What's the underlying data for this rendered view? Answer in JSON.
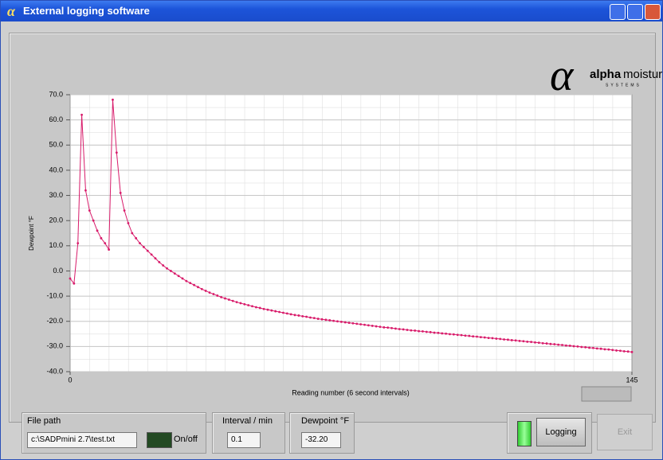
{
  "window": {
    "title": "External logging software"
  },
  "logo": {
    "bold": "alpha",
    "light": "moisture",
    "sub": "SYSTEMS"
  },
  "chart_data": {
    "type": "line",
    "ylabel": "Dewpoint °F",
    "xlabel": "Reading number (6 second intervals)",
    "color": "#d81b6a",
    "x": [
      0,
      1,
      2,
      3,
      4,
      5,
      6,
      7,
      8,
      9,
      10,
      11,
      12,
      13,
      14,
      15,
      16,
      17,
      18,
      19,
      20,
      21,
      22,
      23,
      24,
      25,
      26,
      27,
      28,
      29,
      30,
      31,
      32,
      33,
      34,
      35,
      36,
      37,
      38,
      39,
      40,
      41,
      42,
      43,
      44,
      45,
      46,
      47,
      48,
      49,
      50,
      51,
      52,
      53,
      54,
      55,
      56,
      57,
      58,
      59,
      60,
      61,
      62,
      63,
      64,
      65,
      66,
      67,
      68,
      69,
      70,
      71,
      72,
      73,
      74,
      75,
      76,
      77,
      78,
      79,
      80,
      81,
      82,
      83,
      84,
      85,
      86,
      87,
      88,
      89,
      90,
      91,
      92,
      93,
      94,
      95,
      96,
      97,
      98,
      99,
      100,
      101,
      102,
      103,
      104,
      105,
      106,
      107,
      108,
      109,
      110,
      111,
      112,
      113,
      114,
      115,
      116,
      117,
      118,
      119,
      120,
      121,
      122,
      123,
      124,
      125,
      126,
      127,
      128,
      129,
      130,
      131,
      132,
      133,
      134,
      135,
      136,
      137,
      138,
      139,
      140,
      141,
      142,
      143,
      144,
      145
    ],
    "values": [
      -3,
      -5,
      11,
      62,
      32,
      24,
      20,
      16,
      13,
      11,
      8.5,
      68,
      47,
      31,
      24,
      19,
      15,
      13,
      11,
      9.5,
      8,
      6.5,
      5,
      3.5,
      2.2,
      1,
      0,
      -1,
      -2,
      -3,
      -4,
      -4.8,
      -5.6,
      -6.4,
      -7.2,
      -7.9,
      -8.6,
      -9.2,
      -9.8,
      -10.4,
      -10.9,
      -11.4,
      -11.9,
      -12.4,
      -12.8,
      -13.2,
      -13.6,
      -14,
      -14.4,
      -14.7,
      -15.1,
      -15.4,
      -15.7,
      -16,
      -16.3,
      -16.6,
      -16.9,
      -17.2,
      -17.5,
      -17.7,
      -18,
      -18.2,
      -18.5,
      -18.7,
      -19,
      -19.2,
      -19.4,
      -19.6,
      -19.8,
      -20,
      -20.2,
      -20.4,
      -20.6,
      -20.8,
      -21,
      -21.2,
      -21.4,
      -21.6,
      -21.8,
      -22,
      -22.2,
      -22.4,
      -22.5,
      -22.7,
      -22.9,
      -23.1,
      -23.2,
      -23.4,
      -23.6,
      -23.7,
      -23.9,
      -24,
      -24.2,
      -24.3,
      -24.5,
      -24.6,
      -24.8,
      -24.9,
      -25.1,
      -25.2,
      -25.4,
      -25.5,
      -25.7,
      -25.8,
      -26,
      -26.1,
      -26.3,
      -26.4,
      -26.6,
      -26.7,
      -26.9,
      -27,
      -27.2,
      -27.3,
      -27.5,
      -27.6,
      -27.8,
      -27.9,
      -28.1,
      -28.2,
      -28.4,
      -28.5,
      -28.7,
      -28.8,
      -29,
      -29.1,
      -29.3,
      -29.4,
      -29.6,
      -29.7,
      -29.9,
      -30,
      -30.2,
      -30.3,
      -30.5,
      -30.6,
      -30.8,
      -30.9,
      -31.1,
      -31.2,
      -31.4,
      -31.6,
      -31.7,
      -31.9,
      -32,
      -32.2
    ],
    "xlim": [
      0,
      145
    ],
    "xticks": [
      0,
      145
    ],
    "ylim": [
      -40,
      70
    ],
    "yticks": [
      {
        "value": -40,
        "label": "-40.0"
      },
      {
        "value": -30,
        "label": "-30.0"
      },
      {
        "value": -20,
        "label": "-20.0"
      },
      {
        "value": -10,
        "label": "-10.0"
      },
      {
        "value": 0,
        "label": "0.0"
      },
      {
        "value": 10,
        "label": "10.0"
      },
      {
        "value": 20,
        "label": "20.0"
      },
      {
        "value": 30,
        "label": "30.0"
      },
      {
        "value": 40,
        "label": "40.0"
      },
      {
        "value": 50,
        "label": "50.0"
      },
      {
        "value": 60,
        "label": "60.0"
      },
      {
        "value": 70,
        "label": "70.0"
      }
    ],
    "grid": true
  },
  "controls": {
    "file_path_label": "File path",
    "file_path": "c:\\SADPmini 2.7\\test.txt",
    "onoff": "On/off",
    "interval_label": "Interval / min",
    "interval": "0.1",
    "dewpoint_label": "Dewpoint °F",
    "dewpoint": "-32.20",
    "logging": "Logging",
    "exit": "Exit"
  }
}
